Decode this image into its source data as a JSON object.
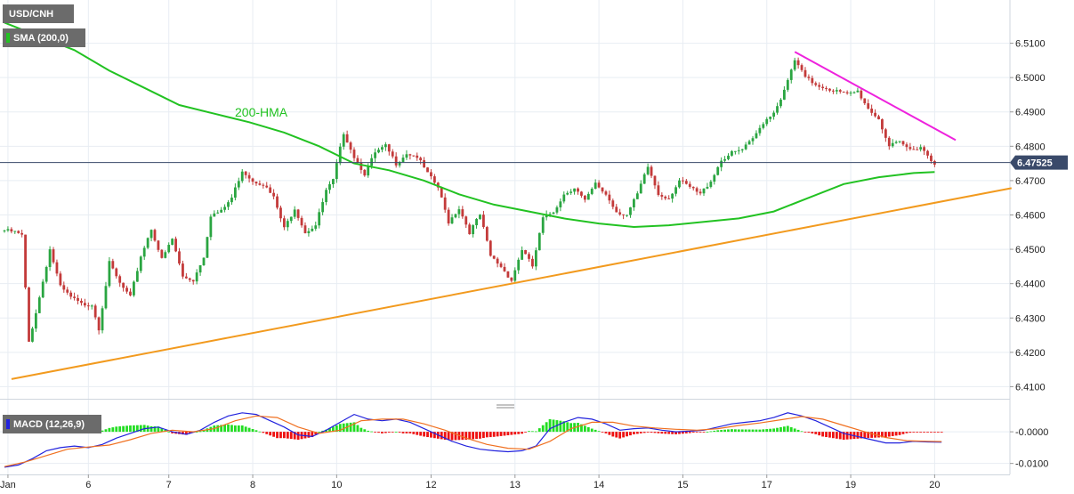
{
  "colors": {
    "background": "#ffffff",
    "grid": "#e8edf3",
    "bull": "#2aa541",
    "bear": "#c33a3a",
    "sma": "#22c222",
    "support_line": "#f29a1e",
    "resistance_line": "#ee22dd",
    "price_line": "#3a4a6a",
    "macd_line": "#2222dd",
    "signal_line": "#f07020",
    "hist_pos": "#22dd22",
    "hist_neg": "#ee1111",
    "tag_bg": "#6b6b6b",
    "last_tag_bg": "#3a4a6a"
  },
  "header": {
    "symbol": "USD/CNH",
    "indicator": "SMA (200,0)",
    "hma_label": "200-HMA",
    "macd_label": "MACD (12,26,9)"
  },
  "chart_data": [
    {
      "type": "candlestick",
      "title": "",
      "x_ticks": [
        "Jan",
        "6",
        "7",
        "8",
        "10",
        "12",
        "13",
        "14",
        "15",
        "17",
        "19",
        "20"
      ],
      "x_tick_index": [
        1,
        24,
        47,
        71,
        95,
        122,
        146,
        170,
        194,
        218,
        242,
        266
      ],
      "ylim": [
        6.407,
        6.513
      ],
      "y_ticks": [
        "6.5100",
        "6.5000",
        "6.4900",
        "6.4800",
        "6.4700",
        "6.4600",
        "6.4500",
        "6.4400",
        "6.4300",
        "6.4200",
        "6.4100"
      ],
      "last_price": "6.47525",
      "close_path": [
        [
          0,
          6.4555
        ],
        [
          3,
          6.455
        ],
        [
          5,
          6.454
        ],
        [
          7,
          6.423
        ],
        [
          10,
          6.436
        ],
        [
          13,
          6.45
        ],
        [
          16,
          6.439
        ],
        [
          19,
          6.436
        ],
        [
          22,
          6.434
        ],
        [
          25,
          6.434
        ],
        [
          27,
          6.427
        ],
        [
          30,
          6.446
        ],
        [
          33,
          6.44
        ],
        [
          36,
          6.436
        ],
        [
          39,
          6.448
        ],
        [
          42,
          6.456
        ],
        [
          45,
          6.447
        ],
        [
          48,
          6.453
        ],
        [
          51,
          6.442
        ],
        [
          54,
          6.441
        ],
        [
          57,
          6.448
        ],
        [
          59,
          6.46
        ],
        [
          62,
          6.461
        ],
        [
          65,
          6.465
        ],
        [
          68,
          6.473
        ],
        [
          71,
          6.47
        ],
        [
          74,
          6.469
        ],
        [
          77,
          6.465
        ],
        [
          80,
          6.456
        ],
        [
          83,
          6.462
        ],
        [
          86,
          6.455
        ],
        [
          89,
          6.457
        ],
        [
          92,
          6.467
        ],
        [
          94,
          6.47
        ],
        [
          97,
          6.484
        ],
        [
          100,
          6.477
        ],
        [
          103,
          6.472
        ],
        [
          106,
          6.478
        ],
        [
          109,
          6.48
        ],
        [
          112,
          6.475
        ],
        [
          115,
          6.478
        ],
        [
          118,
          6.477
        ],
        [
          121,
          6.472
        ],
        [
          124,
          6.468
        ],
        [
          127,
          6.458
        ],
        [
          130,
          6.462
        ],
        [
          133,
          6.455
        ],
        [
          136,
          6.46
        ],
        [
          139,
          6.448
        ],
        [
          142,
          6.445
        ],
        [
          145,
          6.441
        ],
        [
          148,
          6.45
        ],
        [
          151,
          6.445
        ],
        [
          154,
          6.459
        ],
        [
          157,
          6.461
        ],
        [
          160,
          6.466
        ],
        [
          163,
          6.468
        ],
        [
          166,
          6.464
        ],
        [
          169,
          6.469
        ],
        [
          172,
          6.466
        ],
        [
          175,
          6.461
        ],
        [
          178,
          6.46
        ],
        [
          181,
          6.466
        ],
        [
          184,
          6.474
        ],
        [
          187,
          6.466
        ],
        [
          190,
          6.465
        ],
        [
          193,
          6.47
        ],
        [
          196,
          6.468
        ],
        [
          199,
          6.466
        ],
        [
          202,
          6.47
        ],
        [
          205,
          6.476
        ],
        [
          208,
          6.478
        ],
        [
          211,
          6.479
        ],
        [
          214,
          6.482
        ],
        [
          217,
          6.487
        ],
        [
          220,
          6.49
        ],
        [
          223,
          6.496
        ],
        [
          226,
          6.505
        ],
        [
          229,
          6.5
        ],
        [
          232,
          6.498
        ],
        [
          235,
          6.497
        ],
        [
          238,
          6.496
        ],
        [
          241,
          6.495
        ],
        [
          244,
          6.496
        ],
        [
          247,
          6.491
        ],
        [
          250,
          6.488
        ],
        [
          253,
          6.48
        ],
        [
          256,
          6.481
        ],
        [
          259,
          6.479
        ],
        [
          262,
          6.48
        ],
        [
          265,
          6.476
        ],
        [
          266,
          6.47525
        ]
      ],
      "hma_path": [
        [
          0,
          6.516
        ],
        [
          10,
          6.512
        ],
        [
          20,
          6.508
        ],
        [
          30,
          6.502
        ],
        [
          40,
          6.497
        ],
        [
          50,
          6.492
        ],
        [
          60,
          6.4895
        ],
        [
          70,
          6.487
        ],
        [
          80,
          6.484
        ],
        [
          90,
          6.48
        ],
        [
          100,
          6.475
        ],
        [
          110,
          6.473
        ],
        [
          120,
          6.47
        ],
        [
          130,
          6.466
        ],
        [
          140,
          6.463
        ],
        [
          150,
          6.461
        ],
        [
          160,
          6.459
        ],
        [
          170,
          6.4575
        ],
        [
          180,
          6.4565
        ],
        [
          190,
          6.457
        ],
        [
          200,
          6.458
        ],
        [
          210,
          6.459
        ],
        [
          220,
          6.461
        ],
        [
          230,
          6.465
        ],
        [
          240,
          6.469
        ],
        [
          250,
          6.471
        ],
        [
          260,
          6.4722
        ],
        [
          266,
          6.4725
        ]
      ],
      "support_line": [
        [
          2,
          6.4122
        ],
        [
          288,
          6.4678
        ]
      ],
      "resistance_line": [
        [
          226,
          6.5075
        ],
        [
          272,
          6.4818
        ]
      ]
    },
    {
      "type": "macd",
      "title": "",
      "ylim": [
        -0.0115,
        0.0065
      ],
      "y_ticks": [
        "-0.0000",
        "-0.0100"
      ],
      "macd_path": [
        [
          0,
          -0.0112
        ],
        [
          4,
          -0.0105
        ],
        [
          8,
          -0.0085
        ],
        [
          12,
          -0.006
        ],
        [
          16,
          -0.005
        ],
        [
          20,
          -0.0045
        ],
        [
          24,
          -0.005
        ],
        [
          28,
          -0.004
        ],
        [
          32,
          -0.002
        ],
        [
          36,
          -0.0005
        ],
        [
          40,
          0.001
        ],
        [
          44,
          0.0015
        ],
        [
          48,
          0.0
        ],
        [
          52,
          -0.0008
        ],
        [
          56,
          0.0005
        ],
        [
          60,
          0.003
        ],
        [
          64,
          0.005
        ],
        [
          68,
          0.006
        ],
        [
          72,
          0.0055
        ],
        [
          76,
          0.0035
        ],
        [
          80,
          0.0015
        ],
        [
          84,
          -0.001
        ],
        [
          88,
          -0.0015
        ],
        [
          92,
          0.0005
        ],
        [
          96,
          0.003
        ],
        [
          100,
          0.0055
        ],
        [
          104,
          0.004
        ],
        [
          108,
          0.0035
        ],
        [
          112,
          0.004
        ],
        [
          116,
          0.003
        ],
        [
          120,
          0.001
        ],
        [
          124,
          -0.001
        ],
        [
          128,
          -0.003
        ],
        [
          132,
          -0.0045
        ],
        [
          136,
          -0.0055
        ],
        [
          140,
          -0.006
        ],
        [
          144,
          -0.0063
        ],
        [
          148,
          -0.006
        ],
        [
          152,
          -0.0045
        ],
        [
          156,
          0.001
        ],
        [
          160,
          0.003
        ],
        [
          164,
          0.0045
        ],
        [
          168,
          0.004
        ],
        [
          172,
          0.0025
        ],
        [
          176,
          0.0005
        ],
        [
          180,
          0.001
        ],
        [
          184,
          0.0012
        ],
        [
          188,
          0.0005
        ],
        [
          192,
          0.0
        ],
        [
          196,
          0.0002
        ],
        [
          200,
          0.0005
        ],
        [
          204,
          0.0015
        ],
        [
          208,
          0.0025
        ],
        [
          212,
          0.003
        ],
        [
          216,
          0.0035
        ],
        [
          220,
          0.0045
        ],
        [
          224,
          0.006
        ],
        [
          228,
          0.005
        ],
        [
          232,
          0.0035
        ],
        [
          236,
          0.0015
        ],
        [
          240,
          -0.0005
        ],
        [
          244,
          -0.0015
        ],
        [
          248,
          -0.0025
        ],
        [
          252,
          -0.0035
        ],
        [
          256,
          -0.0035
        ],
        [
          260,
          -0.003
        ],
        [
          264,
          -0.0032
        ],
        [
          268,
          -0.0033
        ]
      ],
      "signal_path": [
        [
          0,
          -0.011
        ],
        [
          6,
          -0.0095
        ],
        [
          12,
          -0.0075
        ],
        [
          18,
          -0.0055
        ],
        [
          24,
          -0.0048
        ],
        [
          30,
          -0.0042
        ],
        [
          36,
          -0.0025
        ],
        [
          42,
          -0.0005
        ],
        [
          48,
          0.0005
        ],
        [
          54,
          0.0
        ],
        [
          60,
          0.001
        ],
        [
          66,
          0.0035
        ],
        [
          72,
          0.005
        ],
        [
          78,
          0.0045
        ],
        [
          84,
          0.0015
        ],
        [
          90,
          -0.0005
        ],
        [
          96,
          0.0005
        ],
        [
          102,
          0.0035
        ],
        [
          108,
          0.004
        ],
        [
          114,
          0.004
        ],
        [
          120,
          0.0025
        ],
        [
          126,
          0.0005
        ],
        [
          132,
          -0.002
        ],
        [
          138,
          -0.004
        ],
        [
          144,
          -0.0052
        ],
        [
          150,
          -0.0055
        ],
        [
          156,
          -0.003
        ],
        [
          162,
          0.001
        ],
        [
          168,
          0.003
        ],
        [
          174,
          0.003
        ],
        [
          180,
          0.0018
        ],
        [
          186,
          0.0012
        ],
        [
          192,
          0.0008
        ],
        [
          198,
          0.0005
        ],
        [
          204,
          0.001
        ],
        [
          210,
          0.002
        ],
        [
          216,
          0.0028
        ],
        [
          222,
          0.0038
        ],
        [
          228,
          0.0048
        ],
        [
          234,
          0.004
        ],
        [
          240,
          0.002
        ],
        [
          246,
          0.0
        ],
        [
          252,
          -0.0018
        ],
        [
          258,
          -0.0028
        ],
        [
          264,
          -0.003
        ],
        [
          268,
          -0.0031
        ]
      ]
    }
  ]
}
